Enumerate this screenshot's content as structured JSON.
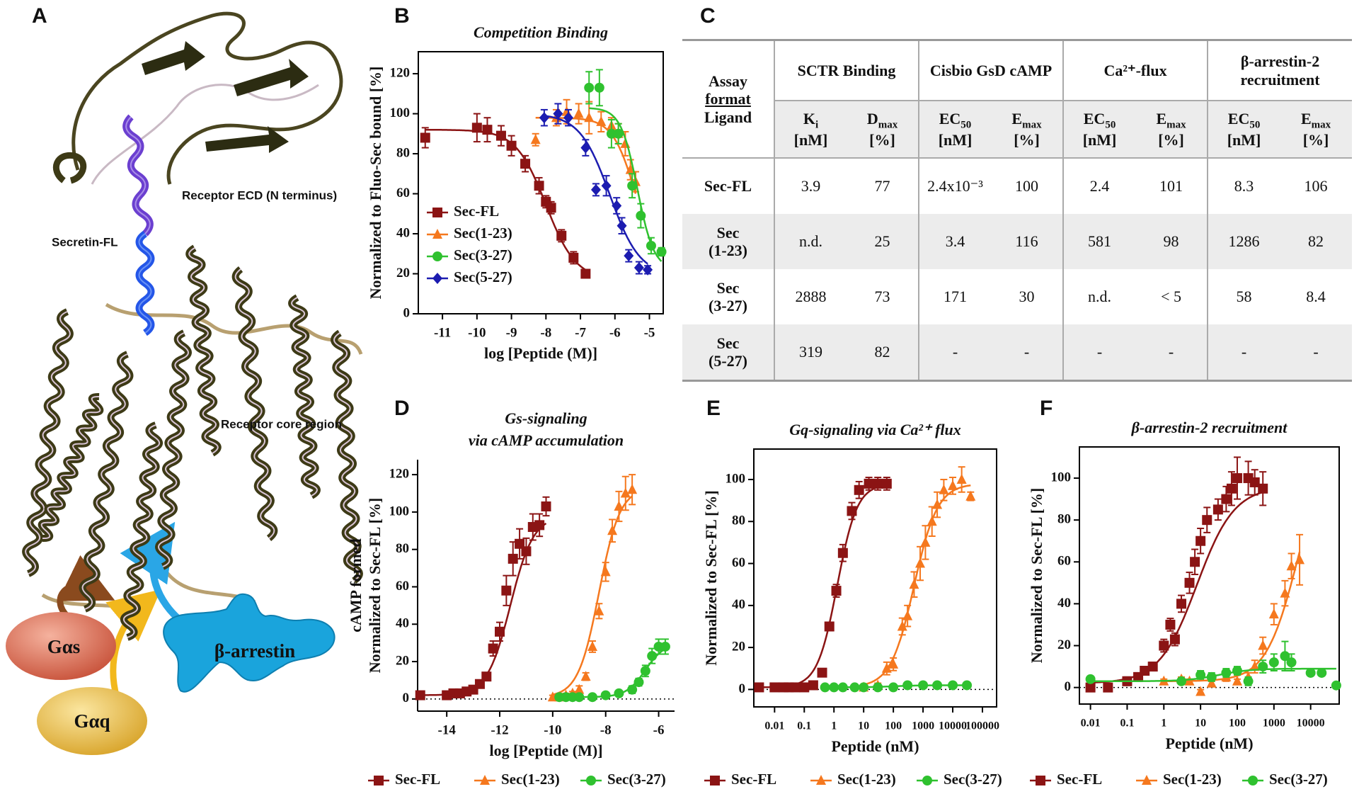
{
  "panel_a": {
    "panel_label": "A",
    "annotations": [
      "Receptor ECD (N terminus)",
      "Secretin-FL",
      "Receptor core region"
    ],
    "proteins": [
      "Gαs",
      "Gαq",
      "β-arrestin"
    ]
  },
  "table": {
    "panel_label": "C",
    "corner": [
      "Assay",
      "format",
      "Ligand"
    ],
    "groups": [
      "SCTR Binding",
      "Cisbio GsD cAMP",
      "Ca²⁺-flux",
      "β-arrestin-2 recruitment"
    ],
    "subheaders": [
      {
        "symbol": "K",
        "sub": "i",
        "unit": "[nM]"
      },
      {
        "symbol": "D",
        "sub": "max",
        "unit": "[%]"
      },
      {
        "symbol": "EC",
        "sub": "50",
        "unit": "[nM]"
      },
      {
        "symbol": "E",
        "sub": "max",
        "unit": "[%]"
      },
      {
        "symbol": "EC",
        "sub": "50",
        "unit": "[nM]"
      },
      {
        "symbol": "E",
        "sub": "max",
        "unit": "[%]"
      },
      {
        "symbol": "EC",
        "sub": "50",
        "unit": "[nM]"
      },
      {
        "symbol": "E",
        "sub": "max",
        "unit": "[%]"
      }
    ],
    "rows": [
      {
        "label": [
          "Sec-FL"
        ],
        "cells": [
          "3.9",
          "77",
          "2.4x10⁻³",
          "100",
          "2.4",
          "101",
          "8.3",
          "106"
        ]
      },
      {
        "label": [
          "Sec",
          "(1-23)"
        ],
        "cells": [
          "n.d.",
          "25",
          "3.4",
          "116",
          "581",
          "98",
          "1286",
          "82"
        ]
      },
      {
        "label": [
          "Sec",
          "(3-27)"
        ],
        "cells": [
          "2888",
          "73",
          "171",
          "30",
          "n.d.",
          "< 5",
          "58",
          "8.4"
        ]
      },
      {
        "label": [
          "Sec",
          "(5-27)"
        ],
        "cells": [
          "319",
          "82",
          "-",
          "-",
          "-",
          "-",
          "-",
          "-"
        ]
      }
    ]
  },
  "chart_data": [
    {
      "type": "scatter",
      "panel_label": "B",
      "title_lines": [
        "Competition Binding"
      ],
      "xlabel": "log [Peptide (M)]",
      "ylabel_lines": [
        "Normalized to Fluo-Sec bound [%]"
      ],
      "xscale": "linear",
      "xlim": [
        -11.7,
        -4.6
      ],
      "xticks": [
        -11,
        -10,
        -9,
        -8,
        -7,
        -6,
        -5
      ],
      "ylim": [
        0,
        131
      ],
      "yticks": [
        0,
        20,
        40,
        60,
        80,
        100,
        120
      ],
      "frame": "box",
      "zero_line": false,
      "legend": "lower left",
      "series": [
        {
          "name": "Sec-FL",
          "color": "#8b1414",
          "marker": "square",
          "x": [
            -11.5,
            -10,
            -9.7,
            -9.3,
            -9,
            -8.6,
            -8.2,
            -8,
            -7.85,
            -7.55,
            -7.2,
            -6.85
          ],
          "values": [
            88,
            93,
            92,
            89,
            84,
            75,
            64,
            56,
            53,
            39,
            28,
            20
          ],
          "errors": [
            5,
            7,
            6,
            5,
            5,
            4,
            4,
            3,
            3,
            3,
            3,
            2
          ],
          "fit": {
            "top": 92,
            "bottom": 17,
            "log_ec50": -8.0,
            "hill": -1
          }
        },
        {
          "name": "Sec(1-23)",
          "color": "#f5781e",
          "marker": "triangle",
          "x": [
            -8.3,
            -7.7,
            -7.4,
            -7.05,
            -6.75,
            -6.4,
            -6.1,
            -5.9,
            -5.7,
            -5.55,
            -5.4
          ],
          "values": [
            87,
            98,
            101,
            100,
            98,
            96,
            94,
            90,
            85,
            72,
            66
          ],
          "errors": [
            3,
            4,
            6,
            5,
            8,
            5,
            4,
            5,
            6,
            5,
            5
          ],
          "fit": {
            "top": 98,
            "bottom": 22,
            "log_ec50": -5.4,
            "hill": -1.3
          }
        },
        {
          "name": "Sec(3-27)",
          "color": "#2fc12f",
          "marker": "circle",
          "x": [
            -6.75,
            -6.45,
            -6.1,
            -5.9,
            -5.5,
            -5.25,
            -4.95,
            -4.65
          ],
          "values": [
            113,
            113,
            90,
            90,
            64,
            49,
            34,
            31
          ],
          "errors": [
            8,
            9,
            7,
            5,
            6,
            6,
            4,
            2
          ],
          "fit": {
            "top": 103,
            "bottom": 22,
            "log_ec50": -5.35,
            "hill": -1.8
          }
        },
        {
          "name": "Sec(5-27)",
          "color": "#1c1cb0",
          "marker": "diamond",
          "x": [
            -8.05,
            -7.65,
            -7.35,
            -6.85,
            -6.55,
            -6.25,
            -5.95,
            -5.8,
            -5.6,
            -5.3,
            -5.05
          ],
          "values": [
            98,
            100,
            98,
            83,
            62,
            64,
            54,
            44,
            29,
            23,
            22
          ],
          "errors": [
            4,
            5,
            4,
            4,
            3,
            5,
            4,
            4,
            3,
            3,
            2
          ],
          "fit": {
            "top": 100,
            "bottom": 19,
            "log_ec50": -6.15,
            "hill": -1
          }
        }
      ]
    },
    {
      "type": "scatter",
      "panel_label": "D",
      "title_lines": [
        "Gs-signaling",
        "via cAMP accumulation"
      ],
      "xlabel": "log [Peptide (M)]",
      "ylabel_lines": [
        "cAMP formed",
        "Normalized to Sec-FL [%]"
      ],
      "xscale": "linear",
      "xlim": [
        -15.1,
        -5.4
      ],
      "xticks": [
        -14,
        -12,
        -10,
        -8,
        -6
      ],
      "ylim": [
        -6.5,
        128
      ],
      "yticks": [
        0,
        20,
        40,
        60,
        80,
        100,
        120
      ],
      "frame": "axes",
      "zero_line": true,
      "legend": "below",
      "series": [
        {
          "name": "Sec-FL",
          "color": "#8b1414",
          "marker": "square",
          "x": [
            -15,
            -14,
            -13.75,
            -13.5,
            -13.25,
            -13,
            -12.75,
            -12.5,
            -12.25,
            -12,
            -11.75,
            -11.5,
            -11.25,
            -11,
            -10.75,
            -10.5,
            -10.25
          ],
          "values": [
            2,
            2,
            3,
            3,
            4,
            5,
            8,
            12,
            27,
            36,
            58,
            75,
            83,
            79,
            92,
            93,
            103
          ],
          "errors": [
            1,
            1,
            1,
            1,
            1,
            1,
            2,
            2,
            4,
            5,
            8,
            9,
            8,
            7,
            7,
            6,
            5
          ],
          "fit": {
            "top": 98,
            "bottom": 2,
            "log_ec50": -11.6,
            "hill": 1
          }
        },
        {
          "name": "Sec(1-23)",
          "color": "#f5781e",
          "marker": "triangle",
          "x": [
            -10,
            -9.75,
            -9.5,
            -9.25,
            -9,
            -8.75,
            -8.5,
            -8.25,
            -8,
            -7.75,
            -7.5,
            -7.25,
            -7
          ],
          "values": [
            1,
            1,
            2,
            3,
            5,
            12,
            28,
            47,
            68,
            90,
            103,
            110,
            112
          ],
          "errors": [
            1,
            1,
            1,
            1,
            2,
            2,
            3,
            4,
            5,
            6,
            8,
            9,
            8
          ],
          "fit": {
            "top": 113,
            "bottom": 1,
            "log_ec50": -8.25,
            "hill": 1.1
          }
        },
        {
          "name": "Sec(3-27)",
          "color": "#2fc12f",
          "marker": "circle",
          "x": [
            -9.75,
            -9.5,
            -9.25,
            -9,
            -8.5,
            -8,
            -7.5,
            -7,
            -6.75,
            -6.5,
            -6.25,
            -6,
            -5.75
          ],
          "values": [
            1,
            1,
            1,
            1,
            1,
            2,
            3,
            5,
            9,
            15,
            23,
            28,
            28
          ],
          "errors": [
            1,
            1,
            1,
            1,
            1,
            1,
            1,
            2,
            2,
            3,
            4,
            4,
            4
          ],
          "fit": {
            "top": 30,
            "bottom": 1,
            "log_ec50": -6.5,
            "hill": 1.2
          }
        }
      ]
    },
    {
      "type": "scatter",
      "panel_label": "E",
      "title_lines": [
        "Gq-signaling via Ca²⁺ flux"
      ],
      "xlabel": "Peptide (nM)",
      "ylabel_lines": [
        "Normalized to Sec-FL [%]"
      ],
      "xscale": "log",
      "xlim": [
        0.002,
        300000
      ],
      "xticks": [
        0.01,
        0.1,
        1,
        10,
        100,
        1000,
        10000,
        100000
      ],
      "ylim": [
        -8.3,
        114.5
      ],
      "yticks": [
        0,
        20,
        40,
        60,
        80,
        100
      ],
      "frame": "box",
      "zero_line": true,
      "legend": "below",
      "series": [
        {
          "name": "Sec-FL",
          "color": "#8b1414",
          "marker": "square",
          "x": [
            0.003,
            0.01,
            0.02,
            0.03,
            0.05,
            0.1,
            0.2,
            0.4,
            0.7,
            1.2,
            2,
            4,
            7,
            15,
            30,
            60
          ],
          "values": [
            1,
            1,
            1,
            1,
            1,
            1,
            2,
            8,
            30,
            47,
            65,
            85,
            95,
            98,
            98,
            98
          ],
          "errors": [
            1,
            1,
            1,
            1,
            1,
            1,
            1,
            1,
            2,
            3,
            4,
            4,
            4,
            3,
            3,
            3
          ],
          "fit": {
            "top": 98,
            "bottom": 1,
            "log_ec50": 0.11,
            "hill": 1.3
          }
        },
        {
          "name": "Sec(1-23)",
          "color": "#f5781e",
          "marker": "triangle",
          "x": [
            10,
            30,
            60,
            100,
            200,
            300,
            500,
            800,
            1200,
            2000,
            3000,
            5000,
            10000,
            20000,
            40000
          ],
          "values": [
            1,
            2,
            10,
            12,
            30,
            35,
            50,
            60,
            70,
            80,
            88,
            95,
            97,
            100,
            92
          ],
          "errors": [
            1,
            1,
            3,
            3,
            4,
            5,
            6,
            8,
            8,
            7,
            6,
            5,
            4,
            6,
            2
          ],
          "fit": {
            "top": 98,
            "bottom": 1,
            "log_ec50": 2.7,
            "hill": 1.1
          }
        },
        {
          "name": "Sec(3-27)",
          "color": "#2fc12f",
          "marker": "circle",
          "x": [
            0.5,
            1,
            2,
            5,
            10,
            30,
            100,
            300,
            1000,
            3000,
            10000,
            30000
          ],
          "values": [
            1,
            1,
            1,
            1,
            1,
            1,
            1,
            2,
            2,
            2,
            2,
            2
          ],
          "errors": [
            1,
            1,
            1,
            1,
            1,
            1,
            1,
            1,
            1,
            1,
            1,
            1
          ],
          "fit": {
            "top": 2,
            "bottom": 1,
            "log_ec50": 2,
            "hill": 1
          }
        }
      ]
    },
    {
      "type": "scatter",
      "panel_label": "F",
      "title_lines": [
        "β-arrestin-2 recruitment"
      ],
      "xlabel": "Peptide (nM)",
      "ylabel_lines": [
        "Normalized to Sec-FL [%]"
      ],
      "xscale": "log",
      "xlim": [
        0.005,
        60000
      ],
      "xticks": [
        0.01,
        0.1,
        1,
        10,
        100,
        1000,
        10000
      ],
      "ylim": [
        -7.9,
        114.9
      ],
      "yticks": [
        0,
        20,
        40,
        60,
        80,
        100
      ],
      "frame": "box",
      "zero_line": true,
      "legend": "below",
      "series": [
        {
          "name": "Sec-FL",
          "color": "#8b1414",
          "marker": "square",
          "x": [
            0.01,
            0.03,
            0.1,
            0.2,
            0.3,
            0.5,
            1,
            1.5,
            2,
            3,
            5,
            7,
            10,
            15,
            30,
            50,
            70,
            100,
            200,
            300,
            500
          ],
          "values": [
            0,
            0,
            3,
            5,
            8,
            10,
            20,
            30,
            23,
            40,
            50,
            60,
            70,
            80,
            85,
            90,
            95,
            100,
            100,
            98,
            95
          ],
          "errors": [
            1,
            1,
            2,
            2,
            2,
            2,
            3,
            3,
            3,
            4,
            5,
            6,
            6,
            6,
            5,
            6,
            8,
            10,
            8,
            6,
            8
          ],
          "fit": {
            "top": 96,
            "bottom": 2,
            "log_ec50": 0.9,
            "hill": 0.85
          }
        },
        {
          "name": "Sec(1-23)",
          "color": "#f5781e",
          "marker": "triangle",
          "x": [
            1,
            3,
            5,
            10,
            20,
            50,
            100,
            200,
            300,
            500,
            1000,
            2000,
            3000,
            5000
          ],
          "values": [
            3,
            4,
            3,
            -2,
            2,
            5,
            3,
            5,
            10,
            20,
            35,
            45,
            58,
            61
          ],
          "errors": [
            1,
            1,
            1,
            1,
            1,
            2,
            1,
            2,
            3,
            4,
            5,
            6,
            6,
            12
          ],
          "fit": {
            "top": 120,
            "bottom": 3,
            "log_ec50": 3.65,
            "hill": 1
          }
        },
        {
          "name": "Sec(3-27)",
          "color": "#2fc12f",
          "marker": "circle",
          "x": [
            0.01,
            3,
            10,
            20,
            50,
            100,
            200,
            500,
            1000,
            2000,
            3000,
            10000,
            20000,
            50000
          ],
          "values": [
            4,
            3,
            6,
            5,
            7,
            8,
            3,
            10,
            12,
            15,
            12,
            7,
            7,
            1
          ],
          "errors": [
            1,
            1,
            2,
            2,
            2,
            2,
            2,
            3,
            4,
            7,
            4,
            1,
            1,
            1
          ],
          "fit": {
            "top": 9,
            "bottom": 3,
            "log_ec50": 1.5,
            "hill": 1
          }
        }
      ]
    }
  ]
}
